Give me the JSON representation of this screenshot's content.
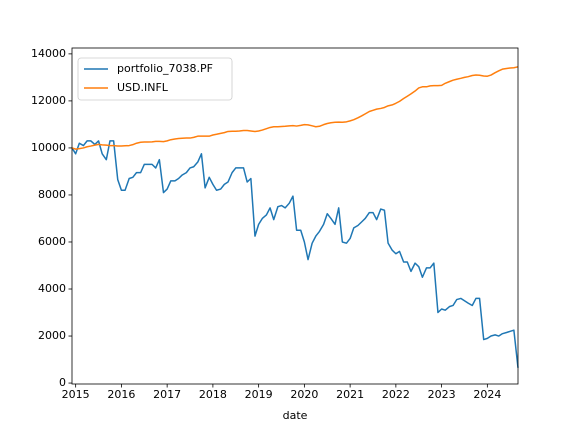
{
  "chart_data": {
    "type": "line",
    "xlabel": "date",
    "legend": "upper left",
    "x": [
      2014.92,
      2015.0,
      2015.08,
      2015.17,
      2015.25,
      2015.33,
      2015.42,
      2015.5,
      2015.58,
      2015.67,
      2015.75,
      2015.83,
      2015.92,
      2016.0,
      2016.08,
      2016.17,
      2016.25,
      2016.33,
      2016.42,
      2016.5,
      2016.58,
      2016.67,
      2016.75,
      2016.83,
      2016.92,
      2017.0,
      2017.08,
      2017.17,
      2017.25,
      2017.33,
      2017.42,
      2017.5,
      2017.58,
      2017.67,
      2017.75,
      2017.83,
      2017.92,
      2018.0,
      2018.08,
      2018.17,
      2018.25,
      2018.33,
      2018.42,
      2018.5,
      2018.58,
      2018.67,
      2018.75,
      2018.83,
      2018.92,
      2019.0,
      2019.08,
      2019.17,
      2019.25,
      2019.33,
      2019.42,
      2019.5,
      2019.58,
      2019.67,
      2019.75,
      2019.83,
      2019.92,
      2020.0,
      2020.08,
      2020.17,
      2020.25,
      2020.33,
      2020.42,
      2020.5,
      2020.58,
      2020.67,
      2020.75,
      2020.83,
      2020.92,
      2021.0,
      2021.08,
      2021.17,
      2021.25,
      2021.33,
      2021.42,
      2021.5,
      2021.58,
      2021.67,
      2021.75,
      2021.83,
      2021.92,
      2022.0,
      2022.08,
      2022.17,
      2022.25,
      2022.33,
      2022.42,
      2022.5,
      2022.58,
      2022.67,
      2022.75,
      2022.83,
      2022.92,
      2023.0,
      2023.08,
      2023.17,
      2023.25,
      2023.33,
      2023.42,
      2023.5,
      2023.58,
      2023.67,
      2023.75,
      2023.83,
      2023.92,
      2024.0,
      2024.08,
      2024.17,
      2024.25,
      2024.33,
      2024.42,
      2024.5,
      2024.58,
      2024.67
    ],
    "series": [
      {
        "name": "portfolio_7038.PF",
        "color": "#1f77b4",
        "values": [
          10000,
          9750,
          10200,
          10100,
          10300,
          10300,
          10150,
          10300,
          9750,
          9500,
          10300,
          10300,
          8650,
          8200,
          8200,
          8700,
          8750,
          8950,
          8950,
          9300,
          9300,
          9300,
          9150,
          9500,
          8100,
          8250,
          8600,
          8600,
          8700,
          8850,
          8950,
          9150,
          9200,
          9400,
          9750,
          8300,
          8750,
          8450,
          8200,
          8250,
          8450,
          8550,
          8950,
          9150,
          9150,
          9150,
          8550,
          8700,
          6250,
          6750,
          7000,
          7150,
          7450,
          6950,
          7500,
          7550,
          7450,
          7650,
          7950,
          6500,
          6500,
          6000,
          5250,
          5950,
          6250,
          6450,
          6750,
          7200,
          7000,
          6750,
          7450,
          6000,
          5950,
          6150,
          6600,
          6700,
          6850,
          7000,
          7250,
          7250,
          6950,
          7400,
          7350,
          5950,
          5650,
          5500,
          5600,
          5150,
          5150,
          4750,
          5100,
          4950,
          4500,
          4900,
          4900,
          5100,
          3000,
          3150,
          3100,
          3250,
          3300,
          3550,
          3600,
          3500,
          3400,
          3300,
          3600,
          3600,
          1850,
          1900,
          2000,
          2050,
          2000,
          2100,
          2150,
          2200,
          2250,
          650
        ]
      },
      {
        "name": "USD.INFL",
        "color": "#ff7f0e",
        "values": [
          10000,
          9950,
          9970,
          10000,
          10050,
          10080,
          10120,
          10150,
          10130,
          10120,
          10100,
          10100,
          10080,
          10080,
          10090,
          10100,
          10140,
          10200,
          10240,
          10250,
          10250,
          10260,
          10280,
          10280,
          10270,
          10300,
          10350,
          10380,
          10400,
          10410,
          10420,
          10420,
          10450,
          10500,
          10500,
          10500,
          10500,
          10550,
          10580,
          10620,
          10650,
          10700,
          10710,
          10710,
          10720,
          10740,
          10740,
          10720,
          10700,
          10720,
          10760,
          10820,
          10870,
          10900,
          10900,
          10910,
          10920,
          10940,
          10950,
          10930,
          10960,
          10990,
          10980,
          10940,
          10900,
          10920,
          10990,
          11040,
          11070,
          11090,
          11100,
          11090,
          11110,
          11150,
          11200,
          11280,
          11360,
          11450,
          11550,
          11600,
          11650,
          11680,
          11720,
          11790,
          11830,
          11900,
          11980,
          12100,
          12200,
          12300,
          12420,
          12550,
          12600,
          12600,
          12640,
          12650,
          12650,
          12660,
          12750,
          12820,
          12880,
          12920,
          12960,
          13000,
          13030,
          13080,
          13100,
          13090,
          13060,
          13050,
          13100,
          13200,
          13280,
          13350,
          13380,
          13400,
          13410,
          13450
        ]
      }
    ],
    "xlim": [
      2014.92,
      2024.67
    ],
    "xticks": [
      2015,
      2016,
      2017,
      2018,
      2019,
      2020,
      2021,
      2022,
      2023,
      2024
    ],
    "ylim": [
      -40,
      14250
    ],
    "yticks": [
      0,
      2000,
      4000,
      6000,
      8000,
      10000,
      12000,
      14000
    ]
  }
}
